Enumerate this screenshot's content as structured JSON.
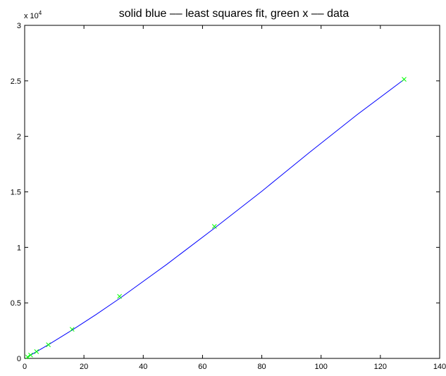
{
  "chart_data": {
    "type": "line",
    "title": "solid blue –– least squares fit, green x –– data",
    "xlabel": "",
    "ylabel": "",
    "xlim": [
      0,
      140
    ],
    "ylim": [
      0,
      30000
    ],
    "x_ticks": [
      0,
      20,
      40,
      60,
      80,
      100,
      120,
      140
    ],
    "x_tick_labels": [
      "0",
      "20",
      "40",
      "60",
      "80",
      "100",
      "120",
      "140"
    ],
    "y_ticks": [
      0,
      5000,
      10000,
      15000,
      20000,
      25000,
      30000
    ],
    "y_tick_labels": [
      "0",
      "0.5",
      "1",
      "1.5",
      "2",
      "2.5",
      "3"
    ],
    "y_multiplier": {
      "base": "x 10",
      "exponent": "4"
    },
    "grid": false,
    "legend": "none",
    "series": [
      {
        "kind": "line",
        "color": "#0000ff",
        "x": [
          1,
          2,
          4,
          8,
          16,
          24,
          32,
          48,
          64,
          80,
          96,
          112,
          128
        ],
        "y": [
          130,
          300,
          610,
          1230,
          2550,
          3940,
          5390,
          8480,
          11730,
          15060,
          18540,
          21920,
          25120
        ]
      },
      {
        "kind": "scatter",
        "marker": "x",
        "color": "#00ff00",
        "x": [
          1,
          2,
          4,
          8,
          16,
          32,
          64,
          128
        ],
        "y": [
          130,
          300,
          610,
          1230,
          2620,
          5590,
          11890,
          25140
        ]
      }
    ]
  }
}
